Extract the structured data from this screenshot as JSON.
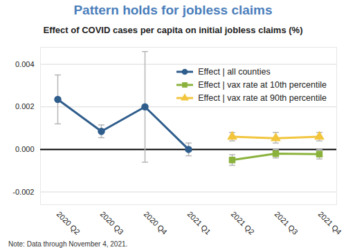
{
  "chart_data": {
    "type": "line",
    "title": "Pattern holds for jobless claims",
    "subtitle": "Effect of COVID cases per capita on initial jobless claims (%)",
    "note": "Note: Data through November 4, 2021.",
    "categories": [
      "2020 Q2",
      "2020 Q3",
      "2020 Q4",
      "2021 Q1",
      "2021 Q2",
      "2021 Q3",
      "2021 Q4"
    ],
    "series": [
      {
        "name": "Effect | all counties",
        "color": "#2f5d8c",
        "marker": "circle",
        "values": [
          0.00235,
          0.00085,
          0.002,
          0.0,
          null,
          null,
          null
        ],
        "error_low": [
          0.0012,
          0.00055,
          -0.0006,
          -0.0003,
          null,
          null,
          null
        ],
        "error_high": [
          0.0035,
          0.00115,
          0.0046,
          0.0003,
          null,
          null,
          null
        ]
      },
      {
        "name": "Effect | vax rate at 10th percentile",
        "color": "#8ab23c",
        "marker": "square",
        "values": [
          null,
          null,
          null,
          null,
          -0.0005,
          -0.0002,
          -0.00022
        ],
        "error_low": [
          null,
          null,
          null,
          null,
          -0.00075,
          -0.0004,
          -0.00045
        ],
        "error_high": [
          null,
          null,
          null,
          null,
          -0.00025,
          0.0,
          0.0
        ]
      },
      {
        "name": "Effect | vax rate at 90th percentile",
        "color": "#f2c53d",
        "marker": "triangle",
        "values": [
          null,
          null,
          null,
          null,
          0.0006,
          0.00052,
          0.0006
        ],
        "error_low": [
          null,
          null,
          null,
          null,
          0.0004,
          0.0003,
          0.0004
        ],
        "error_high": [
          null,
          null,
          null,
          null,
          0.0008,
          0.0008,
          0.0008
        ]
      }
    ],
    "ylim": [
      -0.0026,
      0.0048
    ],
    "yticks": [
      {
        "value": -0.002,
        "label": "-0.002"
      },
      {
        "value": 0,
        "label": "0.000"
      },
      {
        "value": 0.002,
        "label": "0.002"
      },
      {
        "value": 0.004,
        "label": "0.004"
      }
    ],
    "grid": true,
    "legend": "upper right"
  }
}
